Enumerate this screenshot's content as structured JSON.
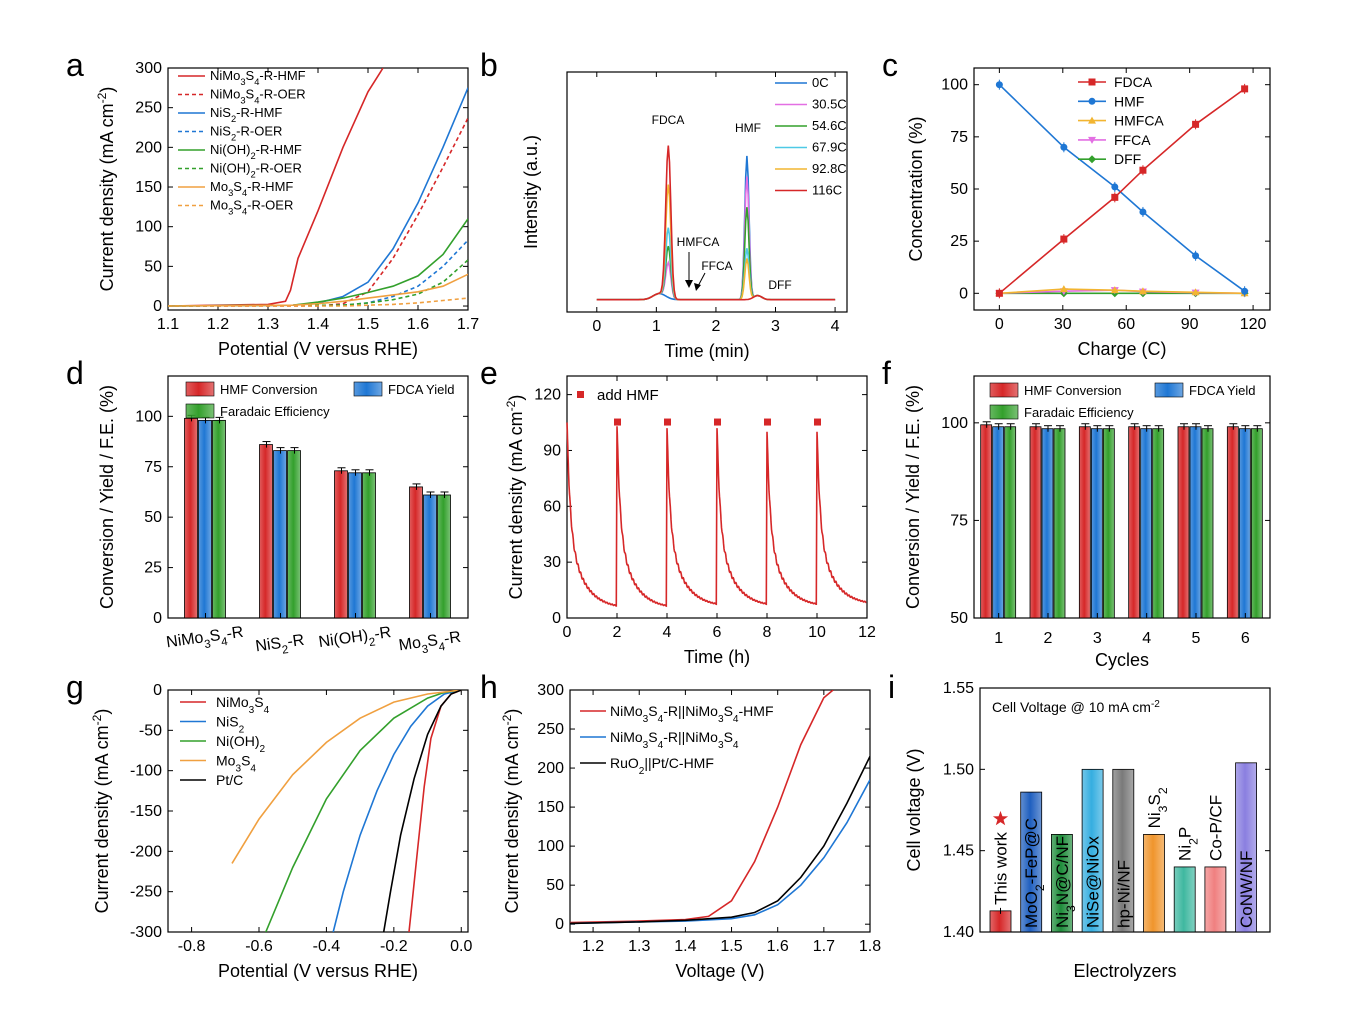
{
  "figure": {
    "colors": {
      "red": "#d62728",
      "blue": "#1f77d4",
      "green": "#33a02c",
      "orange": "#f0a040",
      "black": "#000000",
      "magenta": "#e36fe3",
      "cyan": "#4ec9e6",
      "gold": "#f2b531"
    }
  },
  "chart_data": [
    {
      "panel": "a",
      "type": "line",
      "xlabel": "Potential (V versus RHE)",
      "ylabel": "Current density (mA cm-2)",
      "xlim": [
        1.1,
        1.7
      ],
      "ylim": [
        -5,
        300
      ],
      "xticks": [
        1.1,
        1.2,
        1.3,
        1.4,
        1.5,
        1.6,
        1.7
      ],
      "yticks": [
        0,
        50,
        100,
        150,
        200,
        250,
        300
      ],
      "legend_position": "top-left",
      "series": [
        {
          "name": "NiMo3S4-R-HMF",
          "color": "#d62728",
          "dash": false,
          "x": [
            1.1,
            1.3,
            1.335,
            1.345,
            1.36,
            1.4,
            1.45,
            1.5,
            1.53
          ],
          "y": [
            0,
            2,
            6,
            20,
            60,
            120,
            200,
            270,
            300
          ]
        },
        {
          "name": "NiMo3S4-R-OER",
          "color": "#d62728",
          "dash": true,
          "x": [
            1.1,
            1.4,
            1.45,
            1.5,
            1.55,
            1.6,
            1.65,
            1.7
          ],
          "y": [
            0,
            0,
            3,
            18,
            60,
            115,
            175,
            237
          ]
        },
        {
          "name": "NiS2-R-HMF",
          "color": "#1f77d4",
          "dash": false,
          "x": [
            1.1,
            1.35,
            1.4,
            1.45,
            1.5,
            1.55,
            1.6,
            1.65,
            1.7
          ],
          "y": [
            0,
            1,
            4,
            12,
            30,
            72,
            130,
            200,
            275
          ]
        },
        {
          "name": "NiS2-R-OER",
          "color": "#1f77d4",
          "dash": true,
          "x": [
            1.1,
            1.45,
            1.5,
            1.55,
            1.6,
            1.65,
            1.7
          ],
          "y": [
            0,
            1,
            4,
            12,
            25,
            50,
            83
          ]
        },
        {
          "name": "Ni(OH)2-R-HMF",
          "color": "#33a02c",
          "dash": false,
          "x": [
            1.1,
            1.35,
            1.4,
            1.45,
            1.5,
            1.55,
            1.6,
            1.65,
            1.7
          ],
          "y": [
            0,
            1,
            5,
            10,
            17,
            25,
            38,
            65,
            110
          ]
        },
        {
          "name": "Ni(OH)2-R-OER",
          "color": "#33a02c",
          "dash": true,
          "x": [
            1.1,
            1.45,
            1.5,
            1.55,
            1.6,
            1.65,
            1.7
          ],
          "y": [
            0,
            1,
            4,
            8,
            15,
            30,
            58
          ]
        },
        {
          "name": "Mo3S4-R-HMF",
          "color": "#f0a040",
          "dash": false,
          "x": [
            1.1,
            1.35,
            1.4,
            1.45,
            1.5,
            1.55,
            1.6,
            1.65,
            1.7
          ],
          "y": [
            0,
            1,
            3,
            6,
            10,
            14,
            18,
            25,
            40
          ]
        },
        {
          "name": "Mo3S4-R-OER",
          "color": "#f0a040",
          "dash": true,
          "x": [
            1.1,
            1.45,
            1.5,
            1.55,
            1.6,
            1.65,
            1.7
          ],
          "y": [
            0,
            0,
            1,
            2,
            4,
            7,
            10
          ]
        }
      ]
    },
    {
      "panel": "b",
      "type": "line",
      "xlabel": "Time (min)",
      "ylabel": "Intensity (a.u.)",
      "xlim": [
        -0.5,
        4.2
      ],
      "ylim": [
        -0.05,
        1.12
      ],
      "xticks": [
        0,
        1,
        2,
        3,
        4
      ],
      "yticks": [],
      "legend_position": "top-right",
      "annotations": [
        "FDCA",
        "HMF",
        "HMFCA",
        "FFCA",
        "DFF"
      ],
      "peaks": [
        {
          "name": "0C",
          "color": "#1f77d4",
          "fdca": 0.0,
          "hmf": 0.7
        },
        {
          "name": "30.5C",
          "color": "#e36fe3",
          "fdca": 0.17,
          "hmf": 0.6
        },
        {
          "name": "54.6C",
          "color": "#33a02c",
          "fdca": 0.25,
          "hmf": 0.45
        },
        {
          "name": "67.9C",
          "color": "#4ec9e6",
          "fdca": 0.34,
          "hmf": 0.25
        },
        {
          "name": "92.8C",
          "color": "#f2b531",
          "fdca": 0.55,
          "hmf": 0.2
        },
        {
          "name": "116C",
          "color": "#d62728",
          "fdca": 0.74,
          "hmf": 0.0
        }
      ]
    },
    {
      "panel": "c",
      "type": "line",
      "xlabel": "Charge (C)",
      "ylabel": "Concentration (%)",
      "xlim": [
        -12,
        128
      ],
      "ylim": [
        -8,
        108
      ],
      "xticks": [
        0,
        30,
        60,
        90,
        120
      ],
      "yticks": [
        0,
        25,
        50,
        75,
        100
      ],
      "legend_position": "top-center",
      "series": [
        {
          "name": "FDCA",
          "color": "#d62728",
          "marker": "square",
          "x": [
            0,
            30.5,
            54.6,
            67.9,
            92.8,
            116
          ],
          "y": [
            0,
            26,
            46,
            59,
            81,
            98
          ]
        },
        {
          "name": "HMF",
          "color": "#1f77d4",
          "marker": "circle",
          "x": [
            0,
            30.5,
            54.6,
            67.9,
            92.8,
            116
          ],
          "y": [
            100,
            70,
            51,
            39,
            18,
            1
          ]
        },
        {
          "name": "HMFCA",
          "color": "#f2b531",
          "marker": "triangle-up",
          "x": [
            0,
            30.5,
            54.6,
            67.9,
            92.8,
            116
          ],
          "y": [
            0,
            2,
            1.5,
            1,
            0.5,
            0
          ]
        },
        {
          "name": "FFCA",
          "color": "#e36fe3",
          "marker": "triangle-down",
          "x": [
            0,
            30.5,
            54.6,
            67.9,
            92.8,
            116
          ],
          "y": [
            0,
            1,
            1.5,
            0.8,
            0.3,
            0
          ]
        },
        {
          "name": "DFF",
          "color": "#33a02c",
          "marker": "diamond",
          "x": [
            0,
            30.5,
            54.6,
            67.9,
            92.8,
            116
          ],
          "y": [
            0,
            0,
            0,
            0,
            0,
            0
          ]
        }
      ]
    },
    {
      "panel": "d",
      "type": "bar",
      "xlabel": "",
      "ylabel": "Conversion / Yield / F.E. (%)",
      "ylim": [
        0,
        120
      ],
      "yticks": [
        0,
        25,
        50,
        75,
        100
      ],
      "legend_position": "top",
      "categories": [
        "NiMo3S4-R",
        "NiS2-R",
        "Ni(OH)2-R",
        "Mo3S4-R"
      ],
      "series": [
        {
          "name": "HMF Conversion",
          "color": "#d62728",
          "values": [
            99,
            86,
            73,
            65
          ]
        },
        {
          "name": "FDCA Yield",
          "color": "#1f77d4",
          "values": [
            98,
            83,
            72,
            61
          ]
        },
        {
          "name": "Faradaic Efficiency",
          "color": "#33a02c",
          "values": [
            98,
            83,
            72,
            61
          ]
        }
      ]
    },
    {
      "panel": "e",
      "type": "line",
      "xlabel": "Time (h)",
      "ylabel": "Current density (mA cm-2)",
      "xlim": [
        0,
        12
      ],
      "ylim": [
        0,
        130
      ],
      "xticks": [
        0,
        2,
        4,
        6,
        8,
        10,
        12
      ],
      "yticks": [
        0,
        30,
        60,
        90,
        120
      ],
      "legend_position": "top-left",
      "legend": "add HMF",
      "markers_x": [
        2,
        4,
        6,
        8,
        10
      ],
      "markers_y": 105,
      "cycle_peaks": [
        105,
        103,
        102,
        102,
        100,
        100
      ],
      "cycle_ends": [
        5,
        5,
        6,
        6,
        6,
        7
      ],
      "color": "#d62728"
    },
    {
      "panel": "f",
      "type": "bar",
      "xlabel": "Cycles",
      "ylabel": "Conversion / Yield / F.E. (%)",
      "ylim": [
        50,
        112
      ],
      "yticks": [
        50,
        75,
        100
      ],
      "legend_position": "top",
      "categories": [
        "1",
        "2",
        "3",
        "4",
        "5",
        "6"
      ],
      "series": [
        {
          "name": "HMF Conversion",
          "color": "#d62728",
          "values": [
            99.5,
            99,
            99,
            99,
            99,
            99
          ]
        },
        {
          "name": "FDCA Yield",
          "color": "#1f77d4",
          "values": [
            99,
            98.5,
            98.5,
            98.5,
            99,
            98.5
          ]
        },
        {
          "name": "Faradaic Efficiency",
          "color": "#33a02c",
          "values": [
            99,
            98.5,
            98.5,
            98.5,
            98.5,
            98.5
          ]
        }
      ]
    },
    {
      "panel": "g",
      "type": "line",
      "xlabel": "Potential (V versus RHE)",
      "ylabel": "Current density (mA cm-2)",
      "xlim": [
        -0.87,
        0.02
      ],
      "ylim": [
        -300,
        0
      ],
      "xticks": [
        -0.8,
        -0.6,
        -0.4,
        -0.2,
        0.0
      ],
      "yticks": [
        0,
        -50,
        -100,
        -150,
        -200,
        -250,
        -300
      ],
      "legend_position": "top-left",
      "series": [
        {
          "name": "NiMo3S4",
          "color": "#d62728",
          "x": [
            0,
            -0.03,
            -0.06,
            -0.09,
            -0.11,
            -0.13,
            -0.145,
            -0.155
          ],
          "y": [
            0,
            -5,
            -20,
            -60,
            -120,
            -200,
            -260,
            -300
          ]
        },
        {
          "name": "NiS2",
          "color": "#1f77d4",
          "x": [
            0,
            -0.05,
            -0.1,
            -0.15,
            -0.2,
            -0.25,
            -0.3,
            -0.35,
            -0.38
          ],
          "y": [
            0,
            -5,
            -20,
            -45,
            -80,
            -125,
            -180,
            -250,
            -300
          ]
        },
        {
          "name": "Ni(OH)2",
          "color": "#33a02c",
          "x": [
            0,
            -0.05,
            -0.1,
            -0.2,
            -0.3,
            -0.4,
            -0.5,
            -0.58
          ],
          "y": [
            0,
            -3,
            -10,
            -35,
            -75,
            -135,
            -220,
            -300
          ]
        },
        {
          "name": "Mo3S4",
          "color": "#f0a040",
          "x": [
            0,
            -0.1,
            -0.2,
            -0.3,
            -0.4,
            -0.5,
            -0.6,
            -0.68
          ],
          "y": [
            0,
            -5,
            -15,
            -35,
            -65,
            -105,
            -160,
            -215
          ]
        },
        {
          "name": "Pt/C",
          "color": "#000000",
          "x": [
            0,
            -0.03,
            -0.06,
            -0.1,
            -0.14,
            -0.18,
            -0.21,
            -0.23
          ],
          "y": [
            0,
            -5,
            -20,
            -55,
            -110,
            -180,
            -250,
            -300
          ]
        }
      ]
    },
    {
      "panel": "h",
      "type": "line",
      "xlabel": "Voltage (V)",
      "ylabel": "Current density (mA cm-2)",
      "xlim": [
        1.15,
        1.8
      ],
      "ylim": [
        -10,
        300
      ],
      "xticks": [
        1.2,
        1.3,
        1.4,
        1.5,
        1.6,
        1.7,
        1.8
      ],
      "yticks": [
        0,
        50,
        100,
        150,
        200,
        250,
        300
      ],
      "legend_position": "top-left",
      "series": [
        {
          "name": "NiMo3S4-R||NiMo3S4-HMF",
          "color": "#d62728",
          "x": [
            1.15,
            1.3,
            1.4,
            1.45,
            1.5,
            1.55,
            1.6,
            1.65,
            1.7,
            1.72
          ],
          "y": [
            2,
            4,
            6,
            10,
            30,
            80,
            150,
            230,
            290,
            300
          ]
        },
        {
          "name": "NiMo3S4-R||NiMo3S4",
          "color": "#1f77d4",
          "x": [
            1.15,
            1.3,
            1.4,
            1.5,
            1.55,
            1.6,
            1.65,
            1.7,
            1.75,
            1.8
          ],
          "y": [
            1,
            3,
            4,
            7,
            12,
            25,
            50,
            85,
            130,
            185
          ]
        },
        {
          "name": "RuO2||Pt/C-HMF",
          "color": "#000000",
          "x": [
            1.15,
            1.3,
            1.4,
            1.5,
            1.55,
            1.6,
            1.65,
            1.7,
            1.75,
            1.8
          ],
          "y": [
            1,
            3,
            5,
            9,
            15,
            30,
            60,
            100,
            155,
            215
          ]
        }
      ]
    },
    {
      "panel": "i",
      "type": "bar",
      "xlabel": "Electrolyzers",
      "ylabel": "Cell voltage (V)",
      "title": "Cell Voltage @ 10 mA cm-2",
      "ylim": [
        1.4,
        1.55
      ],
      "yticks": [
        1.4,
        1.45,
        1.5,
        1.55
      ],
      "categories": [
        "This work",
        "MoO2-FeP@C",
        "Ni3N@C/NF",
        "NiSe@NiOx",
        "hp-Ni/NF",
        "Ni3S2",
        "Ni2P",
        "Co-P/CF",
        "CoNW/NF"
      ],
      "values": [
        1.413,
        1.486,
        1.46,
        1.5,
        1.5,
        1.46,
        1.44,
        1.44,
        1.504
      ],
      "colors": [
        "#d62728",
        "#1f5fbf",
        "#1e8c3a",
        "#35aee0",
        "#7a7a7a",
        "#f0952c",
        "#3fb8a0",
        "#f08080",
        "#8a7fe0"
      ]
    }
  ]
}
